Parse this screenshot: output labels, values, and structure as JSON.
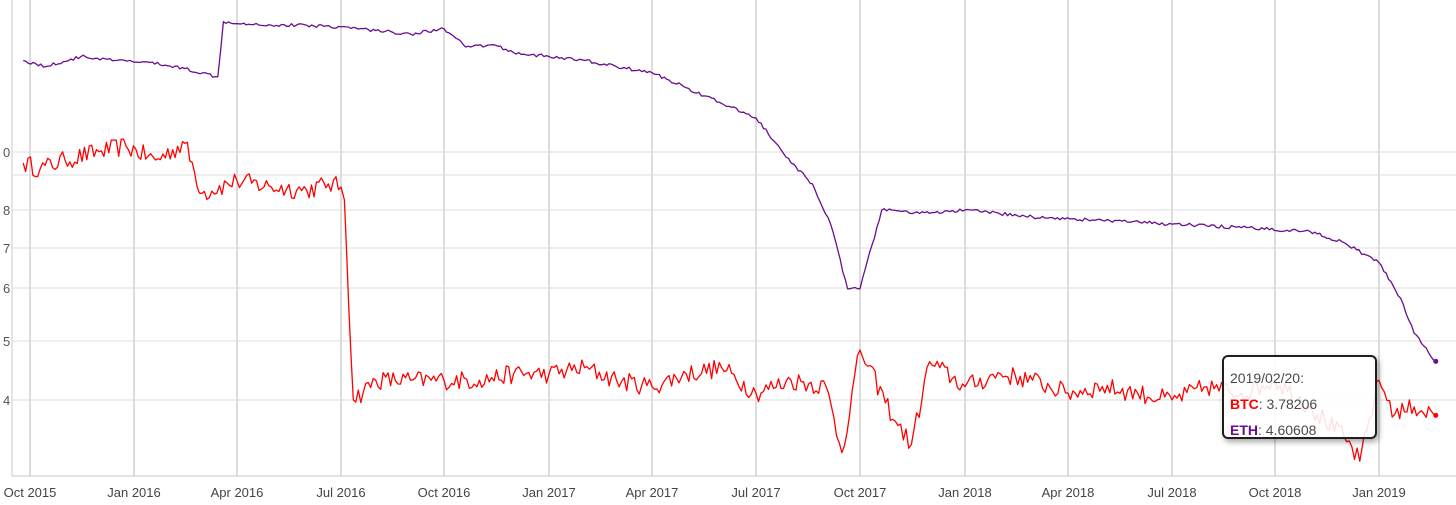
{
  "chart_data": {
    "type": "line",
    "title": "",
    "xlabel": "",
    "ylabel": "",
    "y_scale": "log",
    "grid": true,
    "x_ticks": [
      "Oct 2015",
      "Jan 2016",
      "Apr 2016",
      "Jul 2016",
      "Oct 2016",
      "Jan 2017",
      "Apr 2017",
      "Jul 2017",
      "Oct 2017",
      "Jan 2018",
      "Apr 2018",
      "Jul 2018",
      "Oct 2018",
      "Jan 2019"
    ],
    "y_ticks": [
      "4",
      "5",
      "6",
      "7",
      "8",
      "0"
    ],
    "xlim": [
      "2015-09-25",
      "2019-02-20"
    ],
    "series": [
      {
        "name": "BTC",
        "color": "#ff0000",
        "points": [
          [
            "2015-09-25",
            9.5
          ],
          [
            "2015-10-10",
            9.3
          ],
          [
            "2015-11-01",
            9.6
          ],
          [
            "2015-12-01",
            9.9
          ],
          [
            "2015-12-25",
            10.1
          ],
          [
            "2016-01-20",
            9.6
          ],
          [
            "2016-02-15",
            10.2
          ],
          [
            "2016-03-01",
            8.5
          ],
          [
            "2016-04-01",
            8.9
          ],
          [
            "2016-05-01",
            8.7
          ],
          [
            "2016-06-01",
            8.6
          ],
          [
            "2016-06-20",
            8.8
          ],
          [
            "2016-07-01",
            8.7
          ],
          [
            "2016-07-04",
            8.3
          ],
          [
            "2016-07-12",
            4.0
          ],
          [
            "2016-08-01",
            4.3
          ],
          [
            "2016-09-01",
            4.3
          ],
          [
            "2016-10-01",
            4.3
          ],
          [
            "2016-11-01",
            4.3
          ],
          [
            "2016-12-01",
            4.4
          ],
          [
            "2017-01-01",
            4.4
          ],
          [
            "2017-02-01",
            4.5
          ],
          [
            "2017-03-01",
            4.3
          ],
          [
            "2017-04-01",
            4.2
          ],
          [
            "2017-05-01",
            4.4
          ],
          [
            "2017-06-01",
            4.5
          ],
          [
            "2017-07-01",
            4.1
          ],
          [
            "2017-08-01",
            4.3
          ],
          [
            "2017-09-01",
            4.2
          ],
          [
            "2017-09-15",
            3.3
          ],
          [
            "2017-10-01",
            4.8
          ],
          [
            "2017-11-01",
            3.7
          ],
          [
            "2017-11-15",
            3.4
          ],
          [
            "2017-12-01",
            4.6
          ],
          [
            "2018-01-01",
            4.2
          ],
          [
            "2018-02-01",
            4.4
          ],
          [
            "2018-03-01",
            4.3
          ],
          [
            "2018-04-01",
            4.1
          ],
          [
            "2018-05-01",
            4.2
          ],
          [
            "2018-06-01",
            4.1
          ],
          [
            "2018-07-01",
            4.0
          ],
          [
            "2018-08-01",
            4.2
          ],
          [
            "2018-09-01",
            4.1
          ],
          [
            "2018-10-01",
            4.3
          ],
          [
            "2018-11-01",
            3.9
          ],
          [
            "2018-12-01",
            3.5
          ],
          [
            "2018-12-15",
            3.2
          ],
          [
            "2019-01-01",
            4.3
          ],
          [
            "2019-01-15",
            3.8
          ],
          [
            "2019-02-01",
            3.9
          ],
          [
            "2019-02-20",
            3.78206
          ]
        ]
      },
      {
        "name": "ETH",
        "color": "#6a0d8f",
        "points": [
          [
            "2015-09-25",
            13.8
          ],
          [
            "2015-10-15",
            13.5
          ],
          [
            "2015-11-15",
            14.0
          ],
          [
            "2015-12-15",
            13.8
          ],
          [
            "2016-01-15",
            13.7
          ],
          [
            "2016-02-15",
            13.4
          ],
          [
            "2016-03-15",
            13.0
          ],
          [
            "2016-03-20",
            15.9
          ],
          [
            "2016-05-01",
            15.7
          ],
          [
            "2016-06-01",
            15.7
          ],
          [
            "2016-07-01",
            15.6
          ],
          [
            "2016-08-01",
            15.4
          ],
          [
            "2016-09-01",
            15.2
          ],
          [
            "2016-10-01",
            15.5
          ],
          [
            "2016-10-20",
            14.5
          ],
          [
            "2016-11-15",
            14.6
          ],
          [
            "2016-12-01",
            14.2
          ],
          [
            "2017-01-01",
            14.0
          ],
          [
            "2017-02-01",
            13.8
          ],
          [
            "2017-03-01",
            13.5
          ],
          [
            "2017-04-01",
            13.2
          ],
          [
            "2017-05-01",
            12.5
          ],
          [
            "2017-06-01",
            11.8
          ],
          [
            "2017-07-01",
            11.2
          ],
          [
            "2017-08-01",
            9.5
          ],
          [
            "2017-08-20",
            8.8
          ],
          [
            "2017-09-05",
            7.6
          ],
          [
            "2017-09-20",
            6.0
          ],
          [
            "2017-10-01",
            6.0
          ],
          [
            "2017-10-20",
            8.0
          ],
          [
            "2017-12-01",
            7.9
          ],
          [
            "2018-01-01",
            8.0
          ],
          [
            "2018-03-01",
            7.8
          ],
          [
            "2018-05-01",
            7.7
          ],
          [
            "2018-07-01",
            7.6
          ],
          [
            "2018-09-01",
            7.5
          ],
          [
            "2018-11-01",
            7.4
          ],
          [
            "2018-12-01",
            7.1
          ],
          [
            "2019-01-01",
            6.6
          ],
          [
            "2019-01-20",
            5.8
          ],
          [
            "2019-02-01",
            5.1
          ],
          [
            "2019-02-20",
            4.60608
          ]
        ]
      }
    ]
  },
  "tooltip": {
    "date": "2019/02/20:",
    "btc_label": "BTC",
    "btc_value": ": 3.78206",
    "eth_label": "ETH",
    "eth_value": ": 4.60608"
  }
}
